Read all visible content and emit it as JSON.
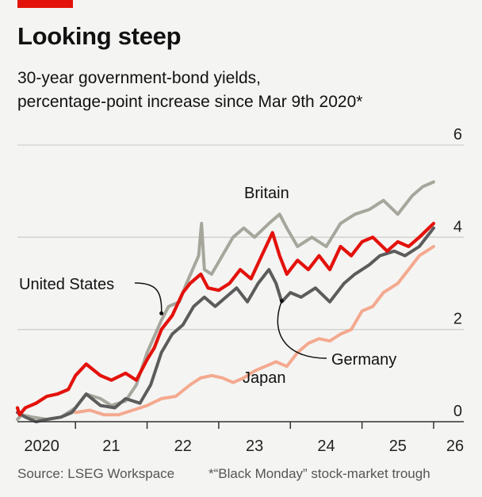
{
  "header": {
    "title": "Looking steep",
    "subtitle_line1": "30-year government-bond yields,",
    "subtitle_line2": "percentage-point increase since Mar 9th 2020*"
  },
  "footer": {
    "source": "Source: LSEG Workspace",
    "footnote": "*“Black Monday” stock-market trough"
  },
  "colors": {
    "britain": "#a6a69c",
    "united_states": "#e3120b",
    "germany": "#5c5c5c",
    "japan": "#f4a98e",
    "grid": "#d0d0cc",
    "axis": "#333333"
  },
  "chart_data": {
    "type": "line",
    "title": "Looking steep",
    "subtitle": "30-year government-bond yields, percentage-point increase since Mar 9th 2020*",
    "x_tick_labels": [
      "2020",
      "21",
      "22",
      "23",
      "24",
      "25",
      "26"
    ],
    "x_ticks": [
      2020,
      2021,
      2022,
      2023,
      2024,
      2025,
      2026
    ],
    "xlim": [
      2020.19,
      2026.0
    ],
    "y_tick_labels": [
      "0",
      "2",
      "4",
      "6"
    ],
    "y_ticks": [
      0,
      2,
      4,
      6
    ],
    "ylim": [
      0,
      6
    ],
    "grid": true,
    "series": [
      {
        "name": "Britain",
        "color_key": "britain",
        "label_x": 2023.25,
        "label_y": 4.7,
        "points": [
          [
            2020.19,
            0.05
          ],
          [
            2020.25,
            0.15
          ],
          [
            2020.4,
            0.1
          ],
          [
            2020.6,
            0.05
          ],
          [
            2020.8,
            0.1
          ],
          [
            2021.0,
            0.3
          ],
          [
            2021.15,
            0.6
          ],
          [
            2021.35,
            0.5
          ],
          [
            2021.5,
            0.35
          ],
          [
            2021.7,
            0.45
          ],
          [
            2021.85,
            0.8
          ],
          [
            2022.0,
            1.5
          ],
          [
            2022.2,
            2.2
          ],
          [
            2022.3,
            2.5
          ],
          [
            2022.45,
            2.6
          ],
          [
            2022.55,
            3.0
          ],
          [
            2022.72,
            3.6
          ],
          [
            2022.76,
            4.3
          ],
          [
            2022.8,
            3.3
          ],
          [
            2022.9,
            3.2
          ],
          [
            2023.05,
            3.6
          ],
          [
            2023.2,
            4.0
          ],
          [
            2023.35,
            4.2
          ],
          [
            2023.5,
            4.0
          ],
          [
            2023.7,
            4.3
          ],
          [
            2023.85,
            4.5
          ],
          [
            2023.95,
            4.2
          ],
          [
            2024.1,
            3.8
          ],
          [
            2024.3,
            4.0
          ],
          [
            2024.5,
            3.8
          ],
          [
            2024.7,
            4.3
          ],
          [
            2024.9,
            4.5
          ],
          [
            2025.1,
            4.6
          ],
          [
            2025.3,
            4.8
          ],
          [
            2025.5,
            4.5
          ],
          [
            2025.7,
            4.9
          ],
          [
            2025.85,
            5.1
          ],
          [
            2026.0,
            5.2
          ]
        ]
      },
      {
        "name": "United States",
        "color_key": "united_states",
        "label_x": 2020.2,
        "label_y": 2.7,
        "points": [
          [
            2020.19,
            0.3
          ],
          [
            2020.22,
            0.15
          ],
          [
            2020.3,
            0.3
          ],
          [
            2020.45,
            0.4
          ],
          [
            2020.6,
            0.55
          ],
          [
            2020.75,
            0.6
          ],
          [
            2020.9,
            0.7
          ],
          [
            2021.0,
            1.0
          ],
          [
            2021.15,
            1.25
          ],
          [
            2021.35,
            1.0
          ],
          [
            2021.5,
            0.9
          ],
          [
            2021.7,
            1.05
          ],
          [
            2021.85,
            0.9
          ],
          [
            2022.0,
            1.35
          ],
          [
            2022.1,
            1.6
          ],
          [
            2022.2,
            2.0
          ],
          [
            2022.35,
            2.3
          ],
          [
            2022.5,
            2.8
          ],
          [
            2022.6,
            3.0
          ],
          [
            2022.75,
            3.2
          ],
          [
            2022.85,
            2.9
          ],
          [
            2023.0,
            2.85
          ],
          [
            2023.15,
            3.0
          ],
          [
            2023.3,
            3.3
          ],
          [
            2023.45,
            3.1
          ],
          [
            2023.6,
            3.6
          ],
          [
            2023.75,
            4.1
          ],
          [
            2023.85,
            3.6
          ],
          [
            2023.95,
            3.2
          ],
          [
            2024.1,
            3.5
          ],
          [
            2024.25,
            3.3
          ],
          [
            2024.4,
            3.6
          ],
          [
            2024.55,
            3.3
          ],
          [
            2024.7,
            3.8
          ],
          [
            2024.85,
            3.6
          ],
          [
            2025.0,
            3.9
          ],
          [
            2025.15,
            4.0
          ],
          [
            2025.35,
            3.7
          ],
          [
            2025.5,
            3.9
          ],
          [
            2025.65,
            3.8
          ],
          [
            2025.8,
            4.0
          ],
          [
            2026.0,
            4.3
          ]
        ]
      },
      {
        "name": "Germany",
        "color_key": "germany",
        "label_x": 2024.6,
        "label_y": 1.4,
        "points": [
          [
            2020.19,
            0.2
          ],
          [
            2020.3,
            0.1
          ],
          [
            2020.45,
            0.0
          ],
          [
            2020.6,
            0.05
          ],
          [
            2020.8,
            0.1
          ],
          [
            2020.95,
            0.2
          ],
          [
            2021.15,
            0.6
          ],
          [
            2021.35,
            0.35
          ],
          [
            2021.55,
            0.3
          ],
          [
            2021.7,
            0.5
          ],
          [
            2021.9,
            0.4
          ],
          [
            2022.05,
            0.8
          ],
          [
            2022.2,
            1.5
          ],
          [
            2022.35,
            1.9
          ],
          [
            2022.5,
            2.1
          ],
          [
            2022.65,
            2.5
          ],
          [
            2022.8,
            2.7
          ],
          [
            2022.95,
            2.5
          ],
          [
            2023.1,
            2.7
          ],
          [
            2023.25,
            2.9
          ],
          [
            2023.4,
            2.6
          ],
          [
            2023.55,
            3.0
          ],
          [
            2023.7,
            3.3
          ],
          [
            2023.8,
            3.0
          ],
          [
            2023.88,
            2.6
          ],
          [
            2024.0,
            2.8
          ],
          [
            2024.15,
            2.7
          ],
          [
            2024.35,
            2.9
          ],
          [
            2024.55,
            2.6
          ],
          [
            2024.75,
            3.0
          ],
          [
            2024.9,
            3.2
          ],
          [
            2025.1,
            3.4
          ],
          [
            2025.25,
            3.6
          ],
          [
            2025.45,
            3.7
          ],
          [
            2025.6,
            3.6
          ],
          [
            2025.8,
            3.8
          ],
          [
            2026.0,
            4.2
          ]
        ]
      },
      {
        "name": "Japan",
        "color_key": "japan",
        "label_x": 2023.55,
        "label_y": 0.7,
        "points": [
          [
            2021.0,
            0.2
          ],
          [
            2021.2,
            0.25
          ],
          [
            2021.4,
            0.15
          ],
          [
            2021.6,
            0.15
          ],
          [
            2021.8,
            0.25
          ],
          [
            2022.0,
            0.35
          ],
          [
            2022.2,
            0.5
          ],
          [
            2022.4,
            0.55
          ],
          [
            2022.6,
            0.8
          ],
          [
            2022.75,
            0.95
          ],
          [
            2022.9,
            1.0
          ],
          [
            2023.05,
            0.95
          ],
          [
            2023.2,
            0.85
          ],
          [
            2023.35,
            0.95
          ],
          [
            2023.5,
            1.1
          ],
          [
            2023.65,
            1.2
          ],
          [
            2023.8,
            1.3
          ],
          [
            2023.95,
            1.2
          ],
          [
            2024.1,
            1.5
          ],
          [
            2024.25,
            1.7
          ],
          [
            2024.4,
            1.8
          ],
          [
            2024.55,
            1.75
          ],
          [
            2024.7,
            1.9
          ],
          [
            2024.85,
            2.0
          ],
          [
            2025.0,
            2.4
          ],
          [
            2025.15,
            2.5
          ],
          [
            2025.3,
            2.8
          ],
          [
            2025.5,
            3.0
          ],
          [
            2025.65,
            3.3
          ],
          [
            2025.8,
            3.6
          ],
          [
            2026.0,
            3.8
          ]
        ]
      }
    ]
  }
}
